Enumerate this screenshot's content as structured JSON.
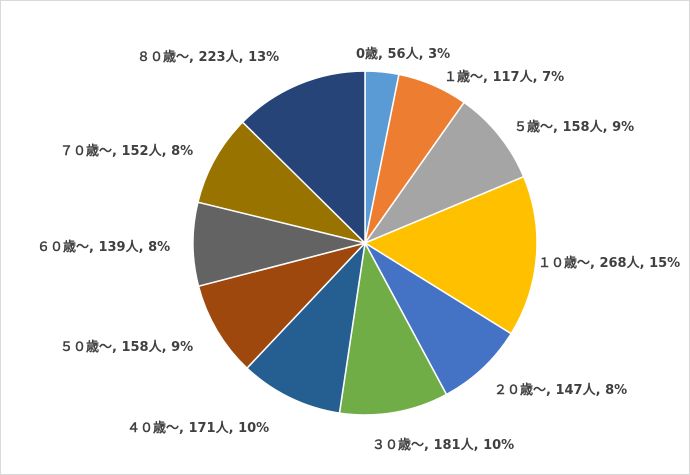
{
  "chart_data": {
    "type": "pie",
    "title": "",
    "start_angle_deg": 0,
    "direction": "clockwise",
    "slices": [
      {
        "label": "0歳",
        "value": 56,
        "percent": "3%",
        "color": "#5B9BD5"
      },
      {
        "label": "１歳～",
        "value": 117,
        "percent": "7%",
        "color": "#ED7D31"
      },
      {
        "label": "５歳～",
        "value": 158,
        "percent": "9%",
        "color": "#A5A5A5"
      },
      {
        "label": "１０歳～",
        "value": 268,
        "percent": "15%",
        "color": "#FFC000"
      },
      {
        "label": "２０歳～",
        "value": 147,
        "percent": "8%",
        "color": "#4472C4"
      },
      {
        "label": "３０歳～",
        "value": 181,
        "percent": "10%",
        "color": "#70AD47"
      },
      {
        "label": "４０歳～",
        "value": 171,
        "percent": "10%",
        "color": "#255E91"
      },
      {
        "label": "５０歳～",
        "value": 158,
        "percent": "9%",
        "color": "#9E480E"
      },
      {
        "label": "６０歳～",
        "value": 139,
        "percent": "8%",
        "color": "#636363"
      },
      {
        "label": "７０歳～",
        "value": 152,
        "percent": "8%",
        "color": "#997300"
      },
      {
        "label": "８０歳～",
        "value": 223,
        "percent": "13%",
        "color": "#264478"
      }
    ],
    "data_labels": [
      "0歳, 56人, 3%",
      "１歳～, 117人, 7%",
      "５歳～, 158人, 9%",
      "１０歳～, 268人, 15%",
      "２０歳～, 147人, 8%",
      "３０歳～, 181人, 10%",
      "４０歳～, 171人, 10%",
      "５０歳～, 158人, 9%",
      "６０歳～, 139人, 8%",
      "７０歳～, 152人, 8%",
      "８０歳～, 223人, 13%"
    ]
  }
}
